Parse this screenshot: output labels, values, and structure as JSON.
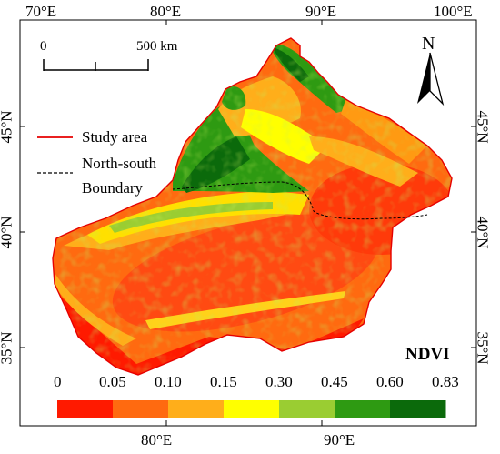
{
  "axes": {
    "top": [
      "70°E",
      "80°E",
      "90°E",
      "100°E"
    ],
    "bottom": [
      "80°E",
      "90°E"
    ],
    "left": [
      "45°N",
      "40°N",
      "35°N"
    ],
    "right": [
      "45°N",
      "40°N",
      "35°N"
    ]
  },
  "scale_bar": {
    "start": "0",
    "end": "500 km"
  },
  "north_arrow": {
    "label": "N"
  },
  "legend": {
    "study_area": "Study area",
    "boundary_line1": "North-south",
    "boundary_line2": "Boundary",
    "study_area_color": "#e60000"
  },
  "colorbar": {
    "title": "NDVI",
    "ticks": [
      "0",
      "0.05",
      "0.10",
      "0.15",
      "0.30",
      "0.45",
      "0.60",
      "0.83"
    ],
    "colors": [
      "#ff1a00",
      "#ff6a10",
      "#ffae1a",
      "#ffff00",
      "#9acd32",
      "#2e9a12",
      "#0b6a0b"
    ]
  }
}
